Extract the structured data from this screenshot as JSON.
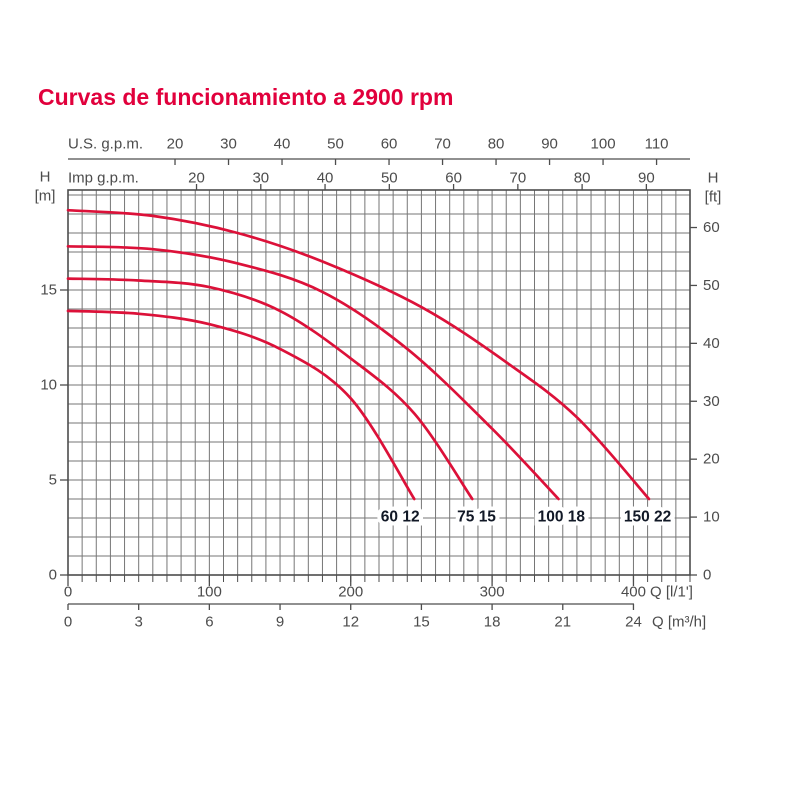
{
  "title": "Curvas de funcionamiento a 2900 rpm",
  "colors": {
    "title_red": "#e1003c",
    "curve_red": "#dc1139",
    "grid": "#767676",
    "frame": "#4d4d4d",
    "axis_text": "#4c4c4c",
    "curve_label_text": "#111826",
    "background": "#ffffff"
  },
  "chart_data": {
    "type": "line",
    "title": "Curvas de funcionamiento a 2900 rpm",
    "grid": "on",
    "axes": {
      "top_us": {
        "label": "U.S. g.p.m.",
        "ticks": [
          20,
          30,
          40,
          50,
          60,
          70,
          80,
          90,
          100,
          110
        ],
        "liters_per_unit": 3.785
      },
      "top_imp": {
        "label": "Imp g.p.m.",
        "ticks": [
          20,
          30,
          40,
          50,
          60,
          70,
          80,
          90
        ],
        "liters_per_unit": 4.546
      },
      "bottom_lmin": {
        "label": "Q [l/1']",
        "ticks": [
          0,
          100,
          200,
          300,
          400
        ],
        "minor_step": 10,
        "range": [
          0,
          440
        ]
      },
      "bottom_m3h": {
        "label": "Q [m³/h]",
        "ticks": [
          0,
          3,
          6,
          9,
          12,
          15,
          18,
          21,
          24
        ],
        "liters_per_unit": 16.6667
      },
      "left_m": {
        "title": "H",
        "unit": "[m]",
        "ticks": [
          0,
          5,
          10,
          15
        ],
        "range": [
          0,
          20.26
        ],
        "grid_step": 1
      },
      "right_ft": {
        "title": "H",
        "unit": "[ft]",
        "ticks": [
          0,
          10,
          20,
          30,
          40,
          50,
          60
        ],
        "meters_per_unit": 0.3048
      }
    },
    "series": [
      {
        "name": "60 12",
        "label_at": [
          235,
          3.05
        ],
        "points": [
          [
            0,
            13.9
          ],
          [
            50,
            13.75
          ],
          [
            100,
            13.2
          ],
          [
            150,
            11.9
          ],
          [
            200,
            9.3
          ],
          [
            245,
            4.0
          ]
        ]
      },
      {
        "name": "75 15",
        "label_at": [
          289,
          3.05
        ],
        "points": [
          [
            0,
            15.6
          ],
          [
            50,
            15.5
          ],
          [
            100,
            15.15
          ],
          [
            150,
            13.9
          ],
          [
            200,
            11.4
          ],
          [
            245,
            8.5
          ],
          [
            286,
            4.0
          ]
        ]
      },
      {
        "name": "100 18",
        "label_at": [
          349,
          3.05
        ],
        "points": [
          [
            0,
            17.3
          ],
          [
            60,
            17.15
          ],
          [
            120,
            16.4
          ],
          [
            180,
            14.9
          ],
          [
            240,
            11.9
          ],
          [
            300,
            7.7
          ],
          [
            347,
            4.0
          ]
        ]
      },
      {
        "name": "150 22",
        "label_at": [
          410,
          3.05
        ],
        "points": [
          [
            0,
            19.2
          ],
          [
            60,
            18.9
          ],
          [
            120,
            18.0
          ],
          [
            180,
            16.5
          ],
          [
            250,
            14.1
          ],
          [
            310,
            11.2
          ],
          [
            360,
            8.3
          ],
          [
            411,
            4.0
          ]
        ]
      }
    ]
  }
}
